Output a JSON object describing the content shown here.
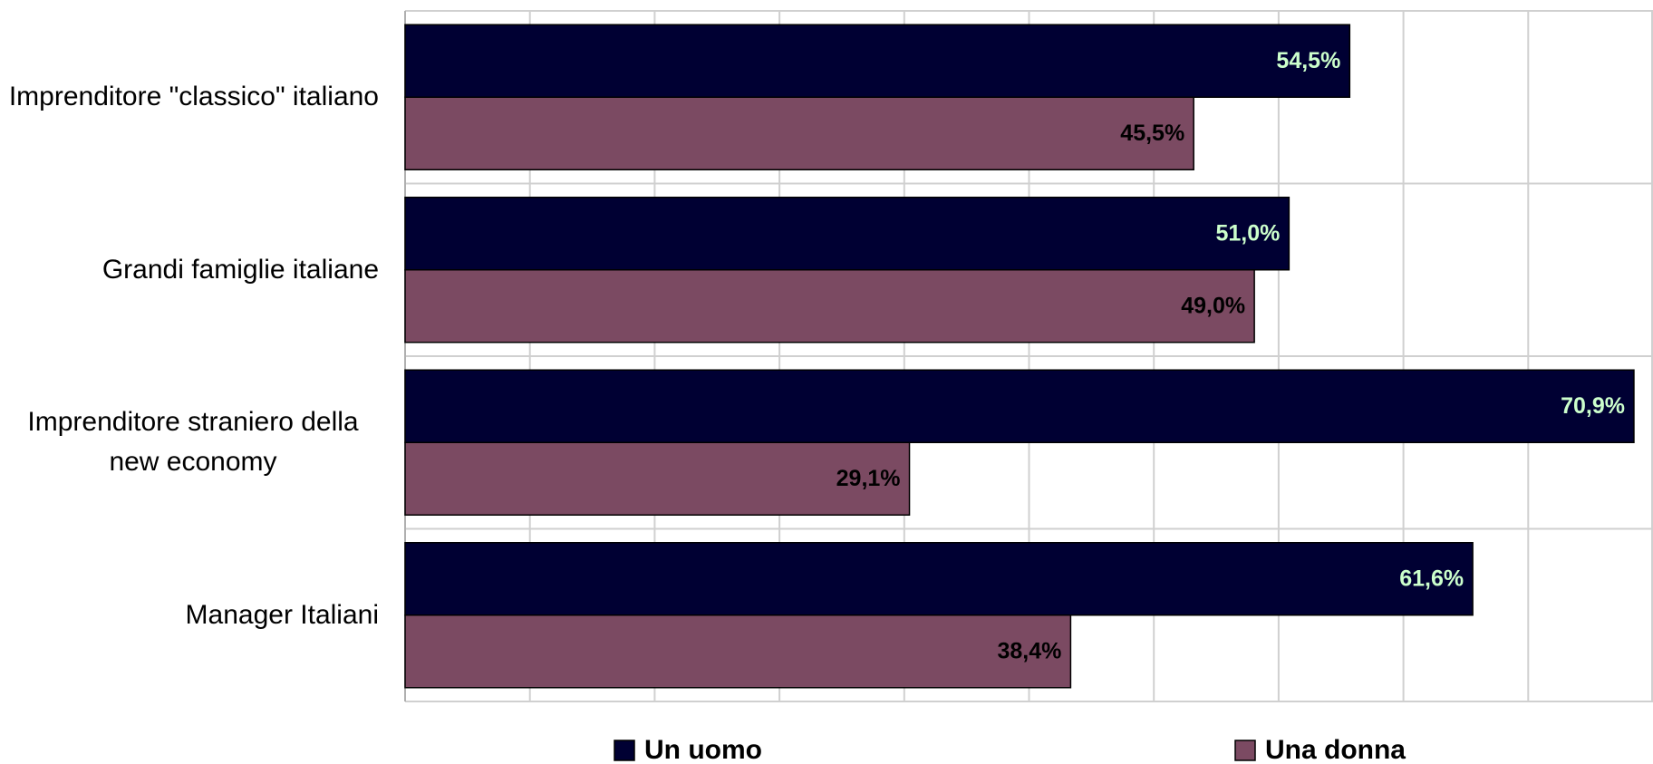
{
  "chart_data": {
    "type": "bar",
    "orientation": "horizontal",
    "categories": [
      "Imprenditore \"classico\" italiano",
      "Grandi famiglie italiane",
      "Imprenditore straniero della new economy",
      "Manager Italiani"
    ],
    "series": [
      {
        "name": "Un uomo",
        "color": "#000033",
        "label_color": "#ccffcc",
        "values": [
          54.5,
          51.0,
          70.9,
          61.6
        ],
        "value_labels": [
          "54,5%",
          "51,0%",
          "70,9%",
          "61,6%"
        ]
      },
      {
        "name": "Una donna",
        "color": "#7b4a62",
        "label_color": "#000000",
        "values": [
          45.5,
          49.0,
          29.1,
          38.4
        ],
        "value_labels": [
          "45,5%",
          "49,0%",
          "29,1%",
          "38,4%"
        ]
      }
    ],
    "xlim": [
      0,
      72
    ],
    "xticks": [
      0,
      7.2,
      14.4,
      21.6,
      28.8,
      36,
      43.2,
      50.4,
      57.6,
      64.8,
      72
    ],
    "grid": true,
    "legend": "bottom"
  }
}
